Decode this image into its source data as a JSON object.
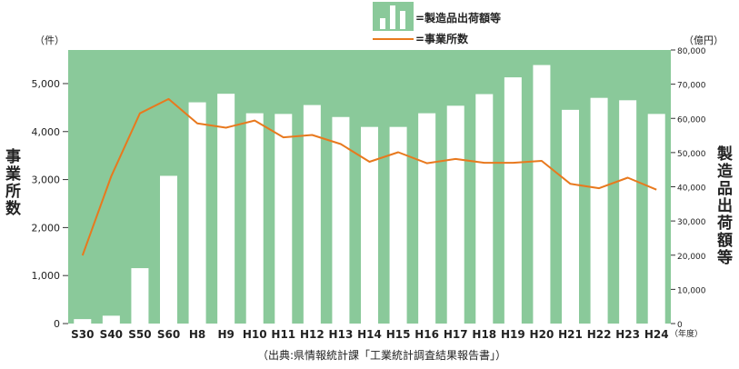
{
  "chart_data": {
    "type": "bar",
    "categories": [
      "S30",
      "S40",
      "S50",
      "S60",
      "H8",
      "H9",
      "H10",
      "H11",
      "H12",
      "H13",
      "H14",
      "H15",
      "H16",
      "H17",
      "H18",
      "H19",
      "H20",
      "H21",
      "H22",
      "H23",
      "H24"
    ],
    "series": [
      {
        "name": "=製造品出荷額等",
        "kind": "bar",
        "axis": "right",
        "values": [
          1300,
          2300,
          16200,
          43200,
          64700,
          67200,
          61500,
          61300,
          63900,
          60400,
          57500,
          57500,
          61500,
          63700,
          67100,
          72000,
          75600,
          62500,
          66000,
          65300,
          61300
        ]
      },
      {
        "name": "=事業所数",
        "kind": "line",
        "axis": "left",
        "values": [
          1420,
          3070,
          4380,
          4680,
          4170,
          4080,
          4230,
          3880,
          3930,
          3740,
          3370,
          3570,
          3340,
          3430,
          3350,
          3350,
          3390,
          2910,
          2820,
          3040,
          2790
        ]
      }
    ],
    "left_axis": {
      "label": "事業所数",
      "unit": "（件）",
      "ylim": [
        0,
        5700
      ],
      "ticks": [
        0,
        1000,
        2000,
        3000,
        4000,
        5000
      ],
      "tick_labels": [
        "0",
        "1,000",
        "2,000",
        "3,000",
        "4,000",
        "5,000"
      ]
    },
    "right_axis": {
      "label": "製造品出荷額等",
      "unit": "（億円）",
      "ylim": [
        0,
        80000
      ],
      "ticks": [
        0,
        10000,
        20000,
        30000,
        40000,
        50000,
        60000,
        70000,
        80000
      ],
      "tick_labels": [
        "0",
        "10,000",
        "20,000",
        "30,000",
        "40,000",
        "50,000",
        "60,000",
        "70,000",
        "80,000"
      ]
    },
    "x_unit": "（年度）",
    "source_note": "（出典:県情報統計課「工業統計調査結果報告書」）",
    "legend_position": "top-center",
    "colors": {
      "plot_background": "#8ac99a",
      "bar_fill": "#ffffff",
      "line": "#e8791e",
      "tick_text": "#222222"
    }
  }
}
